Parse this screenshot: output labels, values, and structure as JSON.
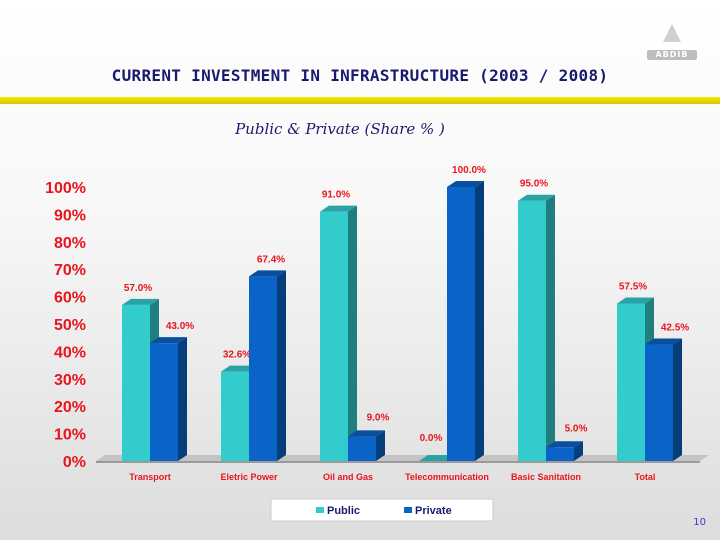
{
  "header": {
    "title": "CURRENT INVESTMENT IN INFRASTRUCTURE (2003 / 2008)",
    "subtitle": "Public & Private (Share % )",
    "logo_text": "ABDIB"
  },
  "page_number": "10",
  "colors": {
    "public": "#33cccc",
    "private": "#0a63c6",
    "title": "#1a1a6e",
    "yellow": "#f2e600"
  },
  "chart_data": {
    "type": "bar",
    "title": "Public & Private (Share % )",
    "categories": [
      "Transport",
      "Eletric Power",
      "Oil and Gas",
      "Telecommunication",
      "Basic Sanitation",
      "Total"
    ],
    "series": [
      {
        "name": "Public",
        "values": [
          57.0,
          32.6,
          91.0,
          0.0,
          95.0,
          57.5
        ],
        "labels": [
          "57.0%",
          "32.6%",
          "91.0%",
          "0.0%",
          "95.0%",
          "57.5%"
        ]
      },
      {
        "name": "Private",
        "values": [
          43.0,
          67.4,
          9.0,
          100.0,
          5.0,
          42.5
        ],
        "labels": [
          "43.0%",
          "67.4%",
          "9.0%",
          "100.0%",
          "5.0%",
          "42.5%"
        ]
      }
    ],
    "yticks": [
      "0%",
      "10%",
      "20%",
      "30%",
      "40%",
      "50%",
      "60%",
      "70%",
      "80%",
      "90%",
      "100%"
    ],
    "ylim": [
      0,
      100
    ],
    "xlabel": "",
    "ylabel": "",
    "legend": [
      "Public",
      "Private"
    ],
    "legend_position": "bottom"
  }
}
